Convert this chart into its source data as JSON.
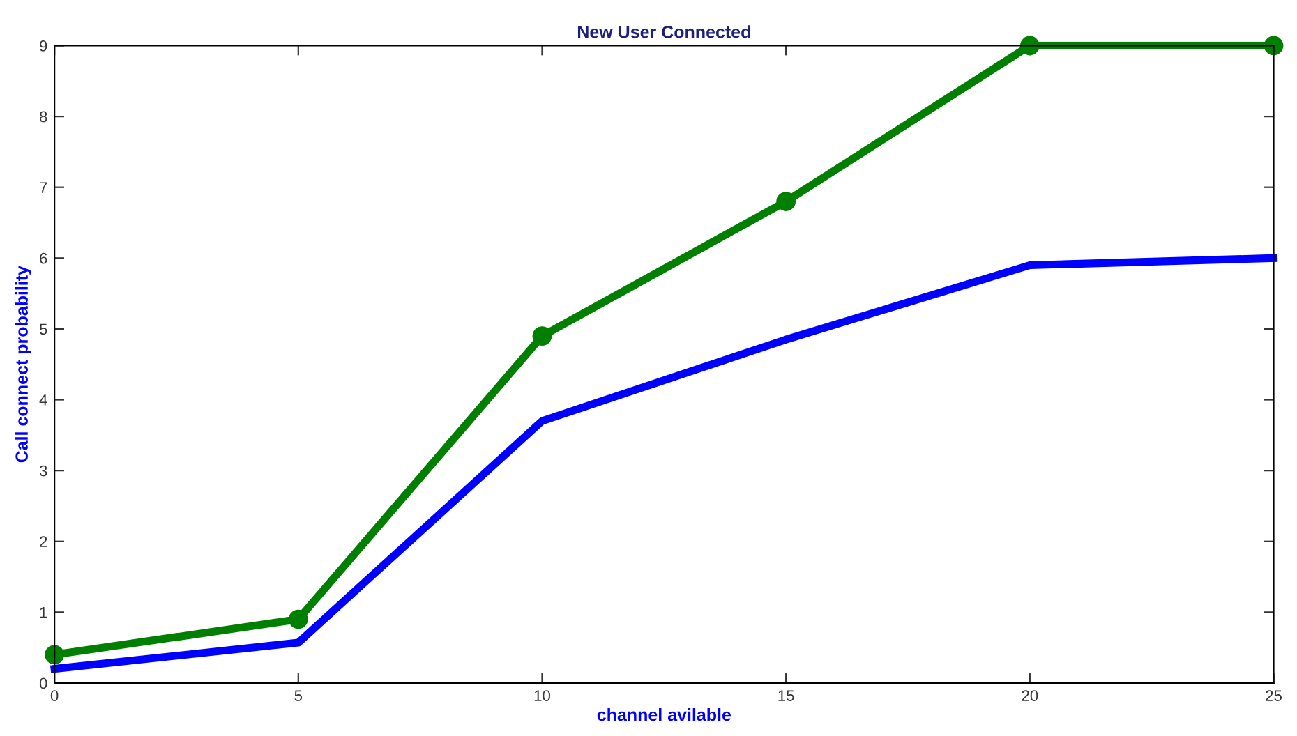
{
  "chart_data": {
    "type": "line",
    "title": "New User Connected",
    "xlabel": "channel avilable",
    "ylabel": "Call connect probability",
    "x": [
      0,
      5,
      10,
      15,
      20,
      25
    ],
    "series": [
      {
        "color": "#0000ff",
        "values": [
          0.2,
          0.57,
          3.7,
          4.85,
          5.9,
          6.0
        ],
        "marker": "none"
      },
      {
        "color": "#007f00",
        "values": [
          0.4,
          0.9,
          4.9,
          6.8,
          9,
          9
        ],
        "marker": "circle"
      }
    ],
    "xlim": [
      0,
      25
    ],
    "xticks": [
      0,
      5,
      10,
      15,
      20,
      25
    ],
    "ylim": [
      0,
      9
    ],
    "yticks": [
      0,
      1,
      2,
      3,
      4,
      5,
      6,
      7,
      8,
      9
    ],
    "grid": false,
    "line_style": "solid"
  }
}
